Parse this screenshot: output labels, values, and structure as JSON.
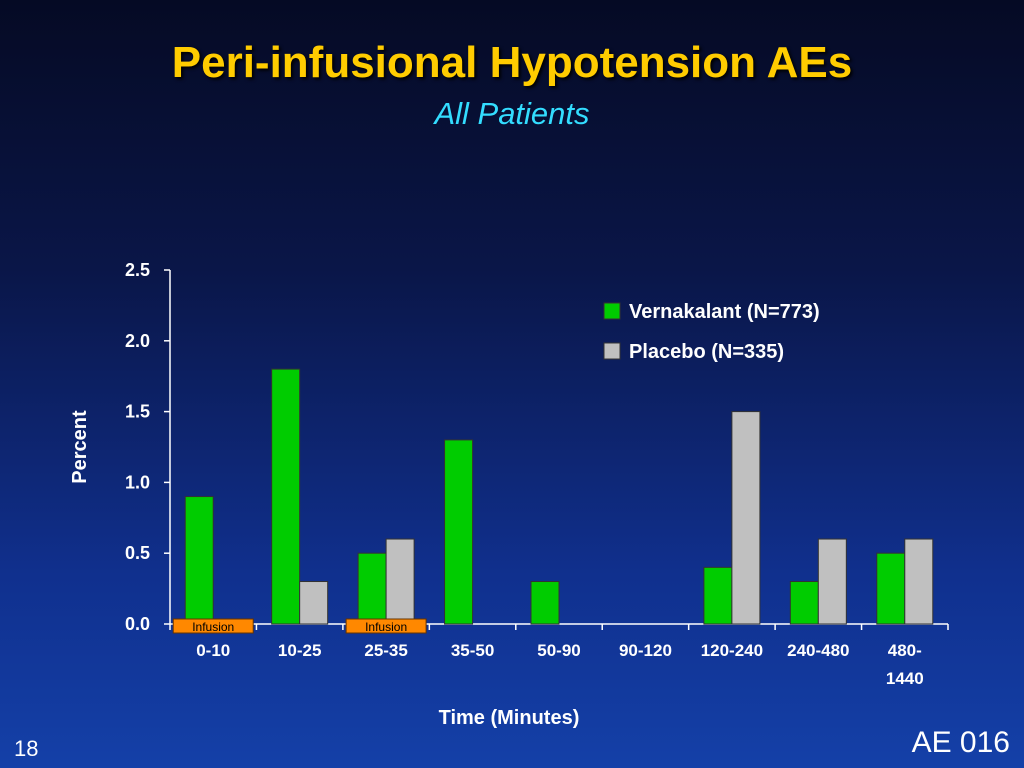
{
  "slide": {
    "title": "Peri-infusional Hypotension AEs",
    "subtitle": "All Patients",
    "page_number": "18",
    "reference": "AE 016"
  },
  "colors": {
    "vernakalant": "#00cc00",
    "placebo": "#c0c0c0",
    "infusion_marker": "#ff8800",
    "title": "#ffcc00",
    "subtitle": "#33ddff"
  },
  "chart_data": {
    "type": "bar",
    "categories": [
      [
        "0-10"
      ],
      [
        "10-25"
      ],
      [
        "25-35"
      ],
      [
        "35-50"
      ],
      [
        "50-90"
      ],
      [
        "90-120"
      ],
      [
        "120-240"
      ],
      [
        "240-480"
      ],
      [
        "480-",
        "1440"
      ]
    ],
    "series": [
      {
        "name": "Vernakalant (N=773)",
        "values": [
          0.9,
          1.8,
          0.5,
          1.3,
          0.3,
          0.0,
          0.4,
          0.3,
          0.5
        ]
      },
      {
        "name": "Placebo (N=335)",
        "values": [
          0.0,
          0.3,
          0.6,
          0.0,
          0.0,
          0.0,
          1.5,
          0.6,
          0.6
        ]
      }
    ],
    "xlabel": "Time (Minutes)",
    "ylabel": "Percent",
    "ylim": [
      0,
      2.5
    ],
    "yticks": [
      "0.0",
      "0.5",
      "1.0",
      "1.5",
      "2.0",
      "2.5"
    ],
    "grid": false,
    "legend_position": "top-right",
    "annotations": [
      {
        "text": "Infusion",
        "category_index": 0
      },
      {
        "text": "Infusion",
        "category_index": 2
      }
    ]
  }
}
